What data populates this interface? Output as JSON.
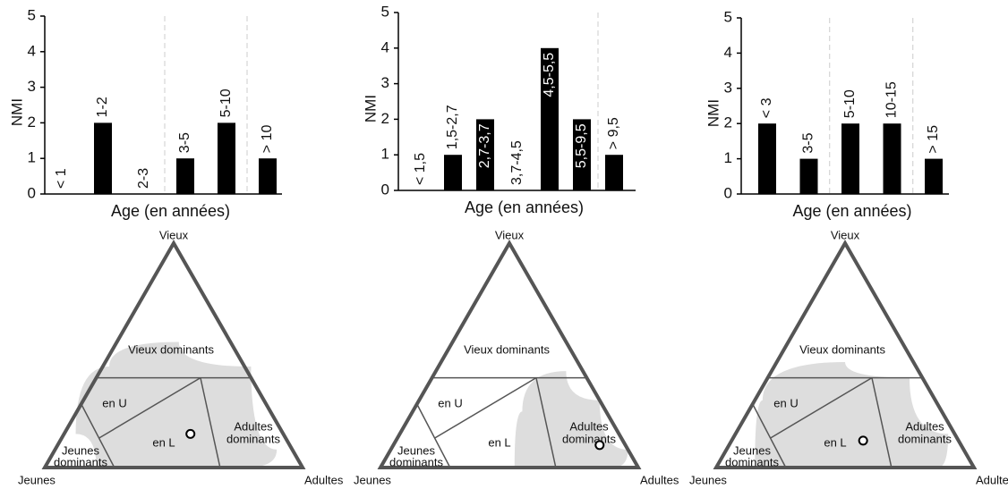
{
  "chart_data": [
    {
      "type": "bar",
      "categories": [
        "< 1",
        "1-2",
        "2-3",
        "3-5",
        "5-10",
        "> 10"
      ],
      "values": [
        0,
        2,
        0,
        1,
        2,
        1
      ],
      "color": "#000000",
      "ylabel": "NMI",
      "xlabel": "Age (en années)",
      "ylim": [
        0,
        5
      ],
      "yticks": [
        0,
        1,
        2,
        3,
        4,
        5
      ]
    },
    {
      "type": "bar",
      "categories": [
        "< 1,5",
        "1,5-2,7",
        "2,7-3,7",
        "3,7-4,5",
        "4,5-5,5",
        "5,5-9,5",
        "> 9,5"
      ],
      "values": [
        0,
        1,
        2,
        0,
        4,
        2,
        1
      ],
      "color": "#000000",
      "labels_inside": true,
      "ylabel": "NMI",
      "xlabel": "Age (en années)",
      "ylim": [
        0,
        5
      ],
      "yticks": [
        0,
        1,
        2,
        3,
        4,
        5
      ]
    },
    {
      "type": "bar",
      "categories": [
        "< 3",
        "3-5",
        "5-10",
        "10-15",
        "> 15"
      ],
      "values": [
        2,
        1,
        2,
        2,
        1
      ],
      "color": "#000000",
      "ylabel": "NMI",
      "xlabel": "Age (en années)",
      "ylim": [
        0,
        5
      ],
      "yticks": [
        0,
        1,
        2,
        3,
        4,
        5
      ]
    },
    {
      "type": "ternary",
      "corners": [
        "Jeunes",
        "Adultes",
        "Vieux"
      ],
      "regions": [
        "Vieux dominants",
        "en U",
        "en L",
        [
          "Adultes",
          "dominants"
        ],
        [
          "Jeunes",
          "dominants"
        ]
      ],
      "point": [
        36,
        49,
        15
      ]
    },
    {
      "type": "ternary",
      "corners": [
        "Jeunes",
        "Adultes",
        "Vieux"
      ],
      "regions": [
        "Vieux dominants",
        "en U",
        "en L",
        [
          "Adultes",
          "dominants"
        ],
        [
          "Jeunes",
          "dominants"
        ]
      ],
      "point": [
        10,
        80,
        10
      ]
    },
    {
      "type": "ternary",
      "corners": [
        "Jeunes",
        "Adultes",
        "Vieux"
      ],
      "regions": [
        "Vieux dominants",
        "en U",
        "en L",
        [
          "Adultes",
          "dominants"
        ],
        [
          "Jeunes",
          "dominants"
        ]
      ],
      "point": [
        37,
        51,
        12
      ]
    }
  ]
}
